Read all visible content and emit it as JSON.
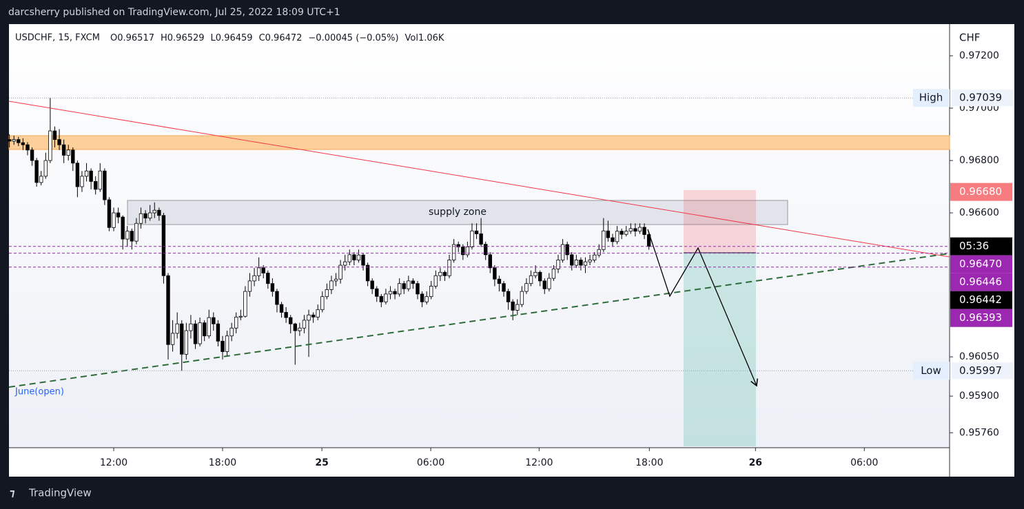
{
  "chart_data": {
    "type": "candlestick",
    "caption": "darcsherry published on TradingView.com, Jul 25, 2022 18:09 UTC+1",
    "header": [
      "USDCHF, 15, FXCM",
      "O0.96517",
      "H0.96529",
      "L0.96459",
      "C0.96472",
      "−0.00045 (−0.05%)",
      "Vol1.06K"
    ],
    "currency": "CHF",
    "brand": "TradingView",
    "annotations": {
      "supply_zone": "supply zone",
      "june_open": "June(open)"
    },
    "up_color": "#ffffff",
    "down_color": "#000000",
    "wick_color": "#000000",
    "xlim": [
      -0.1,
      207.3
    ],
    "ylim": [
      0.95703,
      0.97321
    ],
    "xticks": [
      {
        "value": 23,
        "label": "12:00"
      },
      {
        "value": 47,
        "label": "18:00"
      },
      {
        "value": 68.9,
        "label": "25",
        "bold": true
      },
      {
        "value": 92.9,
        "label": "06:00"
      },
      {
        "value": 116.8,
        "label": "12:00"
      },
      {
        "value": 141.1,
        "label": "18:00"
      },
      {
        "value": 164.5,
        "label": "26",
        "bold": true
      },
      {
        "value": 188.5,
        "label": "06:00"
      }
    ],
    "yticks": [
      {
        "value": 0.972,
        "label": "0.97200"
      },
      {
        "value": 0.97,
        "label": "0.97000"
      },
      {
        "value": 0.968,
        "label": "0.96800"
      },
      {
        "value": 0.966,
        "label": "0.96600"
      },
      {
        "value": 0.9605,
        "label": "0.96050"
      },
      {
        "value": 0.959,
        "label": "0.95900"
      },
      {
        "value": 0.9576,
        "label": "0.95760"
      }
    ],
    "high": {
      "name": "High",
      "value": 0.97039,
      "label": "0.97039"
    },
    "low": {
      "name": "Low",
      "value": 0.95997,
      "label": "0.95997"
    },
    "countdown": "05:36",
    "price_labels": [
      {
        "value": 0.9668,
        "label": "0.96680",
        "color": "#f77c80"
      },
      {
        "value": 0.9647,
        "label": "0.96470",
        "color": "#9c27b0",
        "dashed_line": true
      },
      {
        "value": 0.96446,
        "label": "0.96446",
        "color": "#9c27b0",
        "dashed_line": true
      },
      {
        "value": 0.96442,
        "label": "0.96442",
        "color": "#000000"
      },
      {
        "value": 0.96393,
        "label": "0.96393",
        "color": "#9c27b0",
        "dashed_line": true
      }
    ],
    "candles": [
      [
        0.9688,
        0.969,
        0.9685,
        0.96874
      ],
      [
        0.96874,
        0.96895,
        0.9686,
        0.9688
      ],
      [
        0.9688,
        0.9689,
        0.96855,
        0.96868
      ],
      [
        0.96868,
        0.96885,
        0.9684,
        0.9686
      ],
      [
        0.9686,
        0.9687,
        0.9682,
        0.9684
      ],
      [
        0.9684,
        0.9685,
        0.9678,
        0.968
      ],
      [
        0.968,
        0.9681,
        0.967,
        0.96716
      ],
      [
        0.96716,
        0.9676,
        0.96705,
        0.9674
      ],
      [
        0.9674,
        0.9683,
        0.9673,
        0.968
      ],
      [
        0.968,
        0.97039,
        0.9679,
        0.96913
      ],
      [
        0.96913,
        0.9693,
        0.9685,
        0.9688
      ],
      [
        0.9688,
        0.9692,
        0.9684,
        0.9686
      ],
      [
        0.9686,
        0.9688,
        0.9679,
        0.9682
      ],
      [
        0.9682,
        0.9686,
        0.968,
        0.9684
      ],
      [
        0.9684,
        0.9685,
        0.9676,
        0.9679
      ],
      [
        0.9679,
        0.968,
        0.9666,
        0.967
      ],
      [
        0.967,
        0.9676,
        0.9668,
        0.9674
      ],
      [
        0.9674,
        0.9679,
        0.9672,
        0.9676
      ],
      [
        0.9676,
        0.9677,
        0.9669,
        0.9672
      ],
      [
        0.9672,
        0.9674,
        0.9667,
        0.9669
      ],
      [
        0.9669,
        0.9679,
        0.9668,
        0.9676
      ],
      [
        0.9676,
        0.9677,
        0.9663,
        0.9665
      ],
      [
        0.9665,
        0.9666,
        0.9653,
        0.96544
      ],
      [
        0.96544,
        0.9662,
        0.9653,
        0.966
      ],
      [
        0.966,
        0.9662,
        0.9656,
        0.96584
      ],
      [
        0.96584,
        0.9659,
        0.9646,
        0.965
      ],
      [
        0.965,
        0.9655,
        0.9647,
        0.9653
      ],
      [
        0.9653,
        0.9654,
        0.9646,
        0.96492
      ],
      [
        0.96492,
        0.9658,
        0.9648,
        0.9656
      ],
      [
        0.9656,
        0.9662,
        0.9654,
        0.96597
      ],
      [
        0.96597,
        0.9661,
        0.9656,
        0.9658
      ],
      [
        0.9658,
        0.9663,
        0.9657,
        0.966
      ],
      [
        0.966,
        0.9664,
        0.9658,
        0.9661
      ],
      [
        0.9661,
        0.9662,
        0.9657,
        0.9659
      ],
      [
        0.9659,
        0.966,
        0.9633,
        0.9636
      ],
      [
        0.9636,
        0.9637,
        0.9604,
        0.96097
      ],
      [
        0.96097,
        0.9619,
        0.9607,
        0.9614
      ],
      [
        0.9614,
        0.9622,
        0.9612,
        0.96176
      ],
      [
        0.96176,
        0.9619,
        0.95997,
        0.9606
      ],
      [
        0.9606,
        0.9618,
        0.9604,
        0.9615
      ],
      [
        0.9615,
        0.9621,
        0.9612,
        0.96176
      ],
      [
        0.96176,
        0.9619,
        0.9608,
        0.961
      ],
      [
        0.961,
        0.962,
        0.9609,
        0.9618
      ],
      [
        0.9618,
        0.9619,
        0.9611,
        0.9613
      ],
      [
        0.9613,
        0.9623,
        0.9612,
        0.962
      ],
      [
        0.962,
        0.9622,
        0.9615,
        0.96176
      ],
      [
        0.96176,
        0.9619,
        0.9609,
        0.9611
      ],
      [
        0.9611,
        0.9613,
        0.9604,
        0.9607
      ],
      [
        0.9607,
        0.9615,
        0.9605,
        0.9613
      ],
      [
        0.9613,
        0.9618,
        0.9611,
        0.9616
      ],
      [
        0.9616,
        0.9622,
        0.9614,
        0.96202
      ],
      [
        0.96202,
        0.9623,
        0.9619,
        0.96205
      ],
      [
        0.96205,
        0.9632,
        0.962,
        0.963
      ],
      [
        0.963,
        0.9637,
        0.9628,
        0.9634
      ],
      [
        0.9634,
        0.9639,
        0.9632,
        0.9636
      ],
      [
        0.9636,
        0.9643,
        0.9634,
        0.9639
      ],
      [
        0.9639,
        0.964,
        0.9635,
        0.9637
      ],
      [
        0.9637,
        0.9638,
        0.9631,
        0.9633
      ],
      [
        0.9633,
        0.9635,
        0.9628,
        0.963
      ],
      [
        0.963,
        0.9631,
        0.9622,
        0.9625
      ],
      [
        0.9625,
        0.9626,
        0.962,
        0.9622
      ],
      [
        0.9622,
        0.9624,
        0.9618,
        0.962
      ],
      [
        0.962,
        0.9621,
        0.9614,
        0.96176
      ],
      [
        0.96176,
        0.9618,
        0.9602,
        0.9615
      ],
      [
        0.9615,
        0.9618,
        0.9613,
        0.9616
      ],
      [
        0.9616,
        0.9621,
        0.9614,
        0.9619
      ],
      [
        0.9619,
        0.9623,
        0.9605,
        0.9621
      ],
      [
        0.9621,
        0.9622,
        0.9618,
        0.96202
      ],
      [
        0.96202,
        0.9625,
        0.9619,
        0.9623
      ],
      [
        0.9623,
        0.963,
        0.9622,
        0.9628
      ],
      [
        0.9628,
        0.9633,
        0.9627,
        0.96307
      ],
      [
        0.96307,
        0.9636,
        0.9629,
        0.9634
      ],
      [
        0.9634,
        0.9637,
        0.9632,
        0.96347
      ],
      [
        0.96347,
        0.9642,
        0.9633,
        0.964
      ],
      [
        0.964,
        0.9644,
        0.9638,
        0.96413
      ],
      [
        0.96413,
        0.9646,
        0.964,
        0.9644
      ],
      [
        0.9644,
        0.9645,
        0.964,
        0.9642
      ],
      [
        0.9642,
        0.9646,
        0.9641,
        0.96439
      ],
      [
        0.96439,
        0.96445,
        0.9638,
        0.964
      ],
      [
        0.964,
        0.9641,
        0.9632,
        0.9634
      ],
      [
        0.9634,
        0.9635,
        0.9629,
        0.9631
      ],
      [
        0.9631,
        0.9632,
        0.9626,
        0.96281
      ],
      [
        0.96281,
        0.9629,
        0.9624,
        0.9626
      ],
      [
        0.9626,
        0.9631,
        0.9625,
        0.9629
      ],
      [
        0.9629,
        0.9632,
        0.9627,
        0.963
      ],
      [
        0.963,
        0.9631,
        0.9627,
        0.9629
      ],
      [
        0.9629,
        0.9635,
        0.9628,
        0.9633
      ],
      [
        0.9633,
        0.9634,
        0.9629,
        0.9631
      ],
      [
        0.9631,
        0.9636,
        0.963,
        0.9634
      ],
      [
        0.9634,
        0.9635,
        0.9631,
        0.9633
      ],
      [
        0.9633,
        0.9634,
        0.9627,
        0.9629
      ],
      [
        0.9629,
        0.963,
        0.9624,
        0.9626
      ],
      [
        0.9626,
        0.963,
        0.9625,
        0.9628
      ],
      [
        0.9628,
        0.9634,
        0.9627,
        0.9632
      ],
      [
        0.9632,
        0.9638,
        0.9631,
        0.9636
      ],
      [
        0.9636,
        0.9639,
        0.9634,
        0.96373
      ],
      [
        0.96373,
        0.9638,
        0.9634,
        0.9636
      ],
      [
        0.9636,
        0.9644,
        0.9635,
        0.9642
      ],
      [
        0.9642,
        0.965,
        0.9641,
        0.96479
      ],
      [
        0.96479,
        0.9649,
        0.9645,
        0.9647
      ],
      [
        0.9647,
        0.9648,
        0.9642,
        0.9644
      ],
      [
        0.9644,
        0.9649,
        0.9643,
        0.9647
      ],
      [
        0.9647,
        0.9656,
        0.9646,
        0.96531
      ],
      [
        0.96531,
        0.9656,
        0.965,
        0.9652
      ],
      [
        0.9652,
        0.9658,
        0.9647,
        0.9648
      ],
      [
        0.9648,
        0.9649,
        0.9642,
        0.9644
      ],
      [
        0.9644,
        0.9645,
        0.9637,
        0.9639
      ],
      [
        0.9639,
        0.964,
        0.9632,
        0.96347
      ],
      [
        0.96347,
        0.9636,
        0.963,
        0.9633
      ],
      [
        0.9633,
        0.9634,
        0.9628,
        0.963
      ],
      [
        0.963,
        0.9631,
        0.9623,
        0.9626
      ],
      [
        0.9626,
        0.9627,
        0.9619,
        0.96228
      ],
      [
        0.96228,
        0.9627,
        0.9621,
        0.9625
      ],
      [
        0.9625,
        0.9632,
        0.9624,
        0.963
      ],
      [
        0.963,
        0.9635,
        0.9629,
        0.9633
      ],
      [
        0.9633,
        0.9638,
        0.9632,
        0.9636
      ],
      [
        0.9636,
        0.964,
        0.9635,
        0.96373
      ],
      [
        0.96373,
        0.9638,
        0.9632,
        0.9634
      ],
      [
        0.9634,
        0.9635,
        0.9629,
        0.9631
      ],
      [
        0.9631,
        0.9637,
        0.963,
        0.9635
      ],
      [
        0.9635,
        0.964,
        0.9634,
        0.96386
      ],
      [
        0.96386,
        0.9644,
        0.9637,
        0.9642
      ],
      [
        0.9642,
        0.965,
        0.9641,
        0.96479
      ],
      [
        0.96479,
        0.9649,
        0.9642,
        0.9644
      ],
      [
        0.9644,
        0.9645,
        0.9638,
        0.964
      ],
      [
        0.964,
        0.9644,
        0.9639,
        0.9642
      ],
      [
        0.9642,
        0.9643,
        0.9638,
        0.964
      ],
      [
        0.964,
        0.9643,
        0.9637,
        0.96413
      ],
      [
        0.96413,
        0.9644,
        0.964,
        0.9642
      ],
      [
        0.9642,
        0.9645,
        0.9641,
        0.96439
      ],
      [
        0.96439,
        0.9648,
        0.9643,
        0.9646
      ],
      [
        0.9646,
        0.9658,
        0.9645,
        0.96531
      ],
      [
        0.96531,
        0.9657,
        0.9649,
        0.96505
      ],
      [
        0.96505,
        0.9652,
        0.9647,
        0.9649
      ],
      [
        0.9649,
        0.9655,
        0.9648,
        0.9653
      ],
      [
        0.9653,
        0.9654,
        0.965,
        0.96518
      ],
      [
        0.96518,
        0.9655,
        0.9651,
        0.9653
      ],
      [
        0.9653,
        0.9656,
        0.9652,
        0.9654
      ],
      [
        0.9654,
        0.9656,
        0.9651,
        0.9653
      ],
      [
        0.9653,
        0.9656,
        0.9652,
        0.96545
      ],
      [
        0.96545,
        0.9656,
        0.965,
        0.96517
      ],
      [
        0.96517,
        0.96529,
        0.96459,
        0.96472
      ]
    ]
  }
}
